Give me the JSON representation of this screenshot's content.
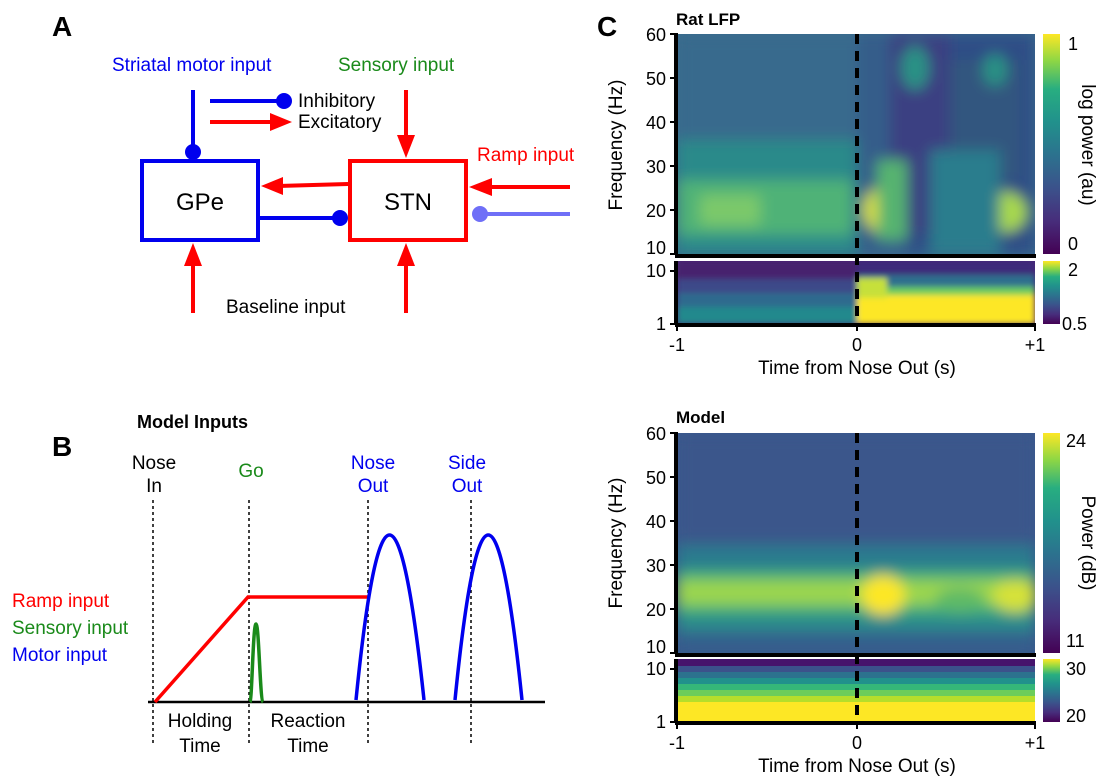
{
  "panel_a": {
    "label": "A",
    "striatal_label": "Striatal motor input",
    "sensory_label": "Sensory input",
    "ramp_label": "Ramp input",
    "baseline_label": "Baseline input",
    "legend_inhibitory": "Inhibitory",
    "legend_excitatory": "Excitatory",
    "gpe_label": "GPe",
    "stn_label": "STN"
  },
  "panel_b": {
    "label": "B",
    "title": "Model Inputs",
    "events": {
      "nose_in_1": "Nose",
      "nose_in_2": "In",
      "go": "Go",
      "nose_out_1": "Nose",
      "nose_out_2": "Out",
      "side_out_1": "Side",
      "side_out_2": "Out"
    },
    "legend": {
      "ramp": "Ramp input",
      "sensory": "Sensory input",
      "motor": "Motor input"
    },
    "intervals": {
      "holding_1": "Holding",
      "holding_2": "Time",
      "reaction_1": "Reaction",
      "reaction_2": "Time"
    }
  },
  "panel_c": {
    "label": "C",
    "xlabel": "Time from Nose Out (s)",
    "ylabel": "Frequency (Hz)",
    "x_ticks": [
      "-1",
      "0",
      "+1"
    ],
    "upper_y_ticks": [
      "60",
      "50",
      "40",
      "30",
      "20",
      "10"
    ],
    "lower_y_ticks": [
      "10",
      "1"
    ],
    "rat": {
      "title": "Rat LFP",
      "colorbar_label": "log power (au)",
      "cb_upper": [
        "1",
        "0"
      ],
      "cb_lower": [
        "2",
        "0.5"
      ]
    },
    "model": {
      "title": "Model",
      "colorbar_label": "Power (dB)",
      "cb_upper": [
        "24",
        "11"
      ],
      "cb_lower": [
        "30",
        "20"
      ]
    }
  },
  "colors": {
    "inhibitory": "#0000ee",
    "excitatory": "#ff0000",
    "sensory": "#1a8a1a",
    "ramp_inhibitory": "#6f6ff7",
    "viridis_low": "#440154",
    "viridis_high": "#fde725"
  }
}
